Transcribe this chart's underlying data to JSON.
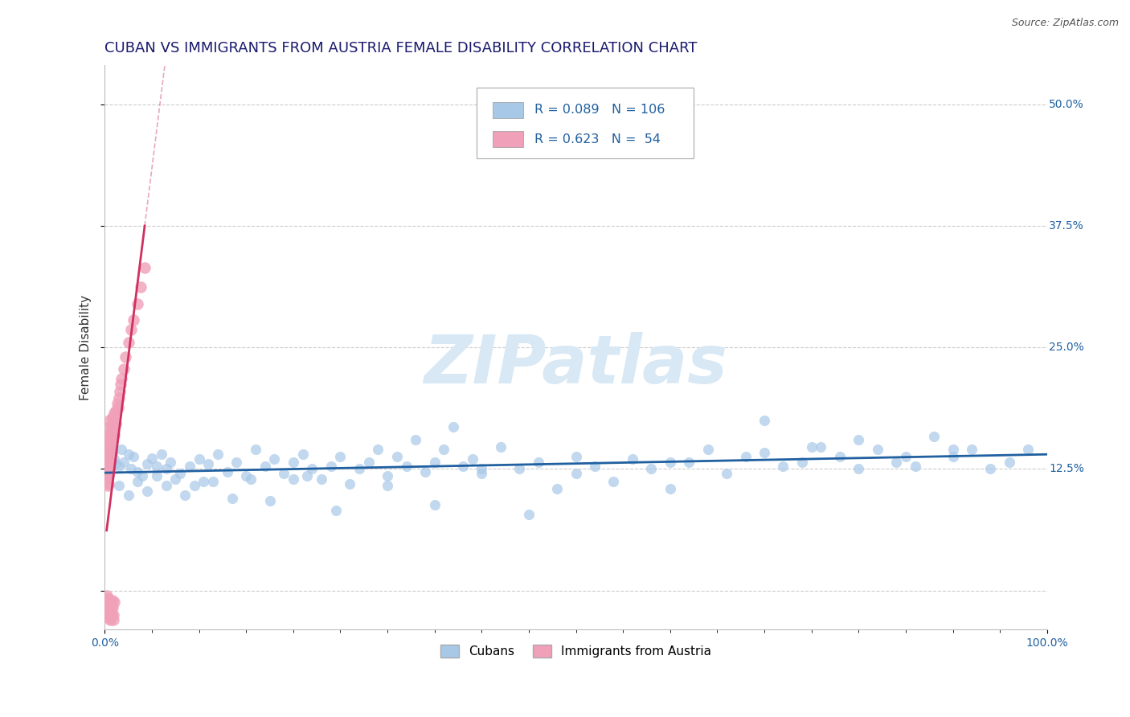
{
  "title": "CUBAN VS IMMIGRANTS FROM AUSTRIA FEMALE DISABILITY CORRELATION CHART",
  "source_text": "Source: ZipAtlas.com",
  "ylabel": "Female Disability",
  "xlim": [
    0.0,
    1.0
  ],
  "ylim": [
    -0.04,
    0.54
  ],
  "ytick_vals": [
    0.0,
    0.125,
    0.25,
    0.375,
    0.5
  ],
  "ytick_labels": [
    "",
    "12.5%",
    "25.0%",
    "37.5%",
    "50.0%"
  ],
  "blue_color": "#A8C8E8",
  "pink_color": "#F0A0B8",
  "blue_line_color": "#2060A0",
  "pink_line_color": "#D03060",
  "pink_dash_color": "#D87090",
  "background_color": "#ffffff",
  "grid_color": "#cccccc",
  "watermark": "ZIPatlas",
  "watermark_color": "#d8e8f4",
  "legend_text_color": "#2060A0",
  "title_color": "#1a1a6e",
  "title_fontsize": 13,
  "source_fontsize": 9,
  "ylabel_fontsize": 11,
  "tick_fontsize": 10,
  "blue_R": 0.089,
  "blue_N": 106,
  "pink_R": 0.623,
  "pink_N": 54,
  "cubans_x": [
    0.005,
    0.008,
    0.01,
    0.012,
    0.015,
    0.018,
    0.02,
    0.025,
    0.028,
    0.03,
    0.035,
    0.04,
    0.045,
    0.05,
    0.055,
    0.06,
    0.065,
    0.07,
    0.08,
    0.09,
    0.1,
    0.11,
    0.12,
    0.13,
    0.14,
    0.15,
    0.16,
    0.17,
    0.18,
    0.19,
    0.2,
    0.21,
    0.22,
    0.23,
    0.24,
    0.25,
    0.26,
    0.27,
    0.28,
    0.29,
    0.3,
    0.31,
    0.32,
    0.33,
    0.34,
    0.35,
    0.36,
    0.37,
    0.38,
    0.39,
    0.4,
    0.42,
    0.44,
    0.46,
    0.48,
    0.5,
    0.52,
    0.54,
    0.56,
    0.58,
    0.6,
    0.62,
    0.64,
    0.66,
    0.68,
    0.7,
    0.72,
    0.74,
    0.76,
    0.78,
    0.8,
    0.82,
    0.84,
    0.86,
    0.88,
    0.9,
    0.92,
    0.94,
    0.96,
    0.98,
    0.015,
    0.025,
    0.035,
    0.045,
    0.055,
    0.065,
    0.075,
    0.085,
    0.095,
    0.105,
    0.2,
    0.3,
    0.4,
    0.5,
    0.6,
    0.7,
    0.75,
    0.8,
    0.85,
    0.9,
    0.115,
    0.135,
    0.155,
    0.175,
    0.215,
    0.245,
    0.35,
    0.45
  ],
  "cubans_y": [
    0.138,
    0.142,
    0.135,
    0.13,
    0.128,
    0.145,
    0.132,
    0.14,
    0.125,
    0.138,
    0.122,
    0.118,
    0.13,
    0.136,
    0.128,
    0.14,
    0.125,
    0.132,
    0.12,
    0.128,
    0.135,
    0.13,
    0.14,
    0.122,
    0.132,
    0.118,
    0.145,
    0.128,
    0.135,
    0.12,
    0.132,
    0.14,
    0.125,
    0.115,
    0.128,
    0.138,
    0.11,
    0.125,
    0.132,
    0.145,
    0.118,
    0.138,
    0.128,
    0.155,
    0.122,
    0.132,
    0.145,
    0.168,
    0.128,
    0.135,
    0.12,
    0.148,
    0.125,
    0.132,
    0.105,
    0.138,
    0.128,
    0.112,
    0.135,
    0.125,
    0.105,
    0.132,
    0.145,
    0.12,
    0.138,
    0.175,
    0.128,
    0.132,
    0.148,
    0.138,
    0.125,
    0.145,
    0.132,
    0.128,
    0.158,
    0.138,
    0.145,
    0.125,
    0.132,
    0.145,
    0.108,
    0.098,
    0.112,
    0.102,
    0.118,
    0.108,
    0.115,
    0.098,
    0.108,
    0.112,
    0.115,
    0.108,
    0.125,
    0.12,
    0.132,
    0.142,
    0.148,
    0.155,
    0.138,
    0.145,
    0.112,
    0.095,
    0.115,
    0.092,
    0.118,
    0.082,
    0.088,
    0.078
  ],
  "austria_x": [
    0.002,
    0.002,
    0.002,
    0.003,
    0.003,
    0.003,
    0.003,
    0.003,
    0.004,
    0.004,
    0.004,
    0.004,
    0.004,
    0.005,
    0.005,
    0.005,
    0.005,
    0.005,
    0.005,
    0.005,
    0.005,
    0.005,
    0.006,
    0.006,
    0.006,
    0.006,
    0.007,
    0.007,
    0.007,
    0.008,
    0.008,
    0.008,
    0.009,
    0.009,
    0.01,
    0.01,
    0.01,
    0.011,
    0.012,
    0.012,
    0.013,
    0.014,
    0.015,
    0.016,
    0.017,
    0.018,
    0.02,
    0.022,
    0.025,
    0.028,
    0.03,
    0.035,
    0.038,
    0.042
  ],
  "austria_y": [
    0.138,
    0.128,
    0.115,
    0.132,
    0.14,
    0.12,
    0.108,
    0.125,
    0.145,
    0.13,
    0.118,
    0.138,
    0.11,
    0.148,
    0.135,
    0.155,
    0.16,
    0.142,
    0.168,
    0.125,
    0.148,
    0.175,
    0.152,
    0.14,
    0.162,
    0.132,
    0.158,
    0.145,
    0.168,
    0.155,
    0.162,
    0.178,
    0.165,
    0.175,
    0.17,
    0.182,
    0.16,
    0.175,
    0.185,
    0.172,
    0.192,
    0.188,
    0.198,
    0.205,
    0.212,
    0.218,
    0.228,
    0.24,
    0.255,
    0.268,
    0.278,
    0.295,
    0.312,
    0.332
  ],
  "austria_y_low": [
    -0.005,
    -0.01,
    -0.015,
    -0.008,
    -0.012,
    -0.018,
    -0.02,
    -0.025,
    -0.015,
    -0.01,
    -0.022,
    -0.018,
    -0.025,
    -0.028,
    -0.03,
    -0.02,
    -0.025,
    -0.015,
    -0.01,
    -0.018,
    -0.025,
    -0.03,
    -0.012
  ],
  "austria_x_low": [
    0.002,
    0.002,
    0.003,
    0.003,
    0.003,
    0.003,
    0.004,
    0.004,
    0.004,
    0.005,
    0.005,
    0.005,
    0.005,
    0.005,
    0.006,
    0.006,
    0.007,
    0.007,
    0.008,
    0.008,
    0.009,
    0.009,
    0.01
  ]
}
